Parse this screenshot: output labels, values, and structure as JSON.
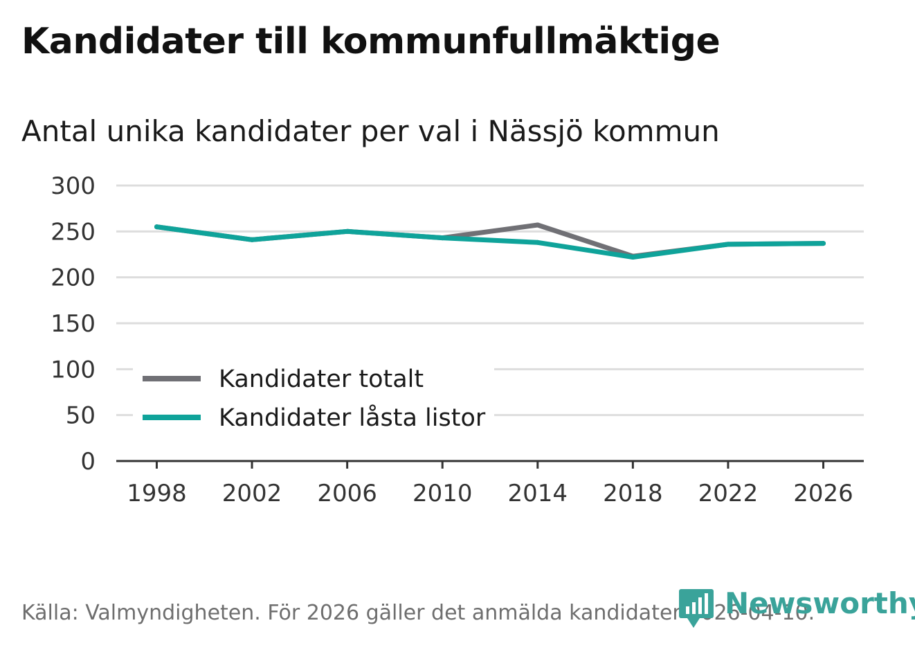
{
  "title": "Kandidater till kommunfullmäktige",
  "subtitle": "Antal unika kandidater per val i Nässjö kommun",
  "source": "Källa: Valmyndigheten. För 2026 gäller det anmälda kandidater 2026-04-10.",
  "brand": {
    "name": "Newsworthy",
    "logo_icon": "newsworthy-bar-chart-logo-icon",
    "color": "#3aa39a"
  },
  "chart_data": {
    "type": "line",
    "x": [
      1998,
      2002,
      2006,
      2010,
      2014,
      2018,
      2022,
      2026
    ],
    "x_tick_labels": [
      "1998",
      "2002",
      "2006",
      "2010",
      "2014",
      "2018",
      "2022",
      "2026"
    ],
    "y_ticks": [
      0,
      50,
      100,
      150,
      200,
      250,
      300
    ],
    "y_tick_labels": [
      "0",
      "50",
      "100",
      "150",
      "200",
      "250",
      "300"
    ],
    "ylim": [
      0,
      300
    ],
    "xlim": [
      1996.3,
      2027.7
    ],
    "grid": true,
    "legend_position": "lower-left",
    "series": [
      {
        "name": "Kandidater totalt",
        "color": "#707075",
        "values": [
          255,
          241,
          250,
          243,
          257,
          223,
          236,
          237
        ]
      },
      {
        "name": "Kandidater låsta listor",
        "color": "#0fa39a",
        "values": [
          255,
          241,
          250,
          243,
          238,
          222,
          236,
          237
        ]
      }
    ]
  }
}
